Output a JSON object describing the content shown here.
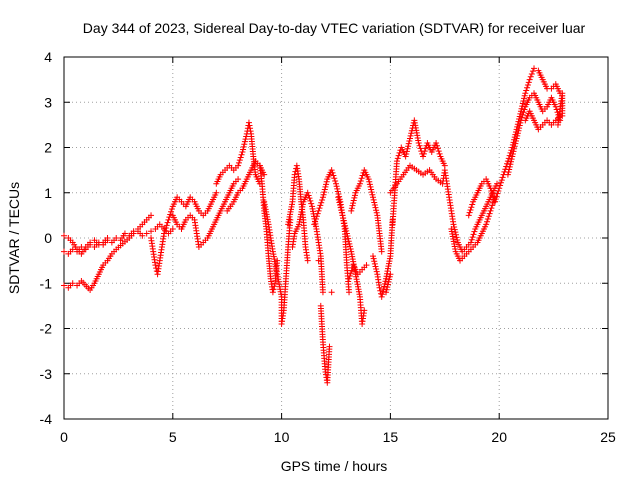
{
  "chart_data": {
    "type": "scatter",
    "title": "Day 344 of 2023, Sidereal Day-to-day VTEC variation (SDTVAR) for receiver luar",
    "xlabel": "GPS time / hours",
    "ylabel": "SDTVAR / TECUs",
    "xlim": [
      0,
      25
    ],
    "ylim": [
      -4,
      4
    ],
    "xticks": [
      0,
      5,
      10,
      15,
      20,
      25
    ],
    "yticks": [
      -4,
      -3,
      -2,
      -1,
      0,
      1,
      2,
      3,
      4
    ],
    "grid": true,
    "marker": "+",
    "series_color": "#ff0000",
    "series": [
      {
        "name": "SDTVAR",
        "points": [
          [
            0.0,
            -0.3
          ],
          [
            0.2,
            -0.35
          ],
          [
            0.4,
            -0.25
          ],
          [
            0.6,
            -0.3
          ],
          [
            0.8,
            -0.2
          ],
          [
            1.0,
            -0.25
          ],
          [
            1.2,
            -0.15
          ],
          [
            1.4,
            -0.2
          ],
          [
            1.6,
            -0.1
          ],
          [
            1.8,
            -0.15
          ],
          [
            2.0,
            -0.05
          ],
          [
            2.2,
            -0.1
          ],
          [
            2.4,
            0.0
          ],
          [
            2.6,
            -0.05
          ],
          [
            2.8,
            0.1
          ],
          [
            3.0,
            0.05
          ],
          [
            3.2,
            0.15
          ],
          [
            3.4,
            0.2
          ],
          [
            3.6,
            0.3
          ],
          [
            3.8,
            0.4
          ],
          [
            4.0,
            0.5
          ],
          [
            0.0,
            0.05
          ],
          [
            0.2,
            0.0
          ],
          [
            0.4,
            -0.1
          ],
          [
            0.6,
            -0.25
          ],
          [
            0.8,
            -0.35
          ],
          [
            1.0,
            -0.2
          ],
          [
            1.2,
            -0.1
          ],
          [
            1.4,
            -0.05
          ],
          [
            1.6,
            -0.15
          ],
          [
            1.8,
            -0.1
          ],
          [
            2.0,
            0.0
          ],
          [
            0.0,
            -1.05
          ],
          [
            0.2,
            -1.1
          ],
          [
            0.4,
            -1.0
          ],
          [
            0.6,
            -1.05
          ],
          [
            0.8,
            -0.95
          ],
          [
            1.2,
            -1.15
          ],
          [
            1.4,
            -1.0
          ],
          [
            1.6,
            -0.8
          ],
          [
            1.8,
            -0.6
          ],
          [
            2.0,
            -0.5
          ],
          [
            2.2,
            -0.35
          ],
          [
            2.4,
            -0.25
          ],
          [
            3.0,
            0.0
          ],
          [
            3.2,
            0.1
          ],
          [
            3.4,
            0.15
          ],
          [
            3.6,
            0.05
          ],
          [
            3.8,
            0.1
          ],
          [
            4.0,
            0.15
          ],
          [
            4.2,
            0.2
          ],
          [
            4.4,
            0.3
          ],
          [
            4.6,
            0.2
          ],
          [
            4.8,
            0.1
          ],
          [
            5.0,
            0.2
          ],
          [
            4.0,
            0.0
          ],
          [
            4.1,
            -0.3
          ],
          [
            4.2,
            -0.6
          ],
          [
            4.3,
            -0.8
          ],
          [
            4.4,
            -0.5
          ],
          [
            4.5,
            -0.2
          ],
          [
            4.6,
            0.1
          ],
          [
            4.6,
            0.1
          ],
          [
            4.8,
            0.4
          ],
          [
            5.0,
            0.7
          ],
          [
            5.2,
            0.9
          ],
          [
            5.4,
            0.8
          ],
          [
            5.6,
            0.7
          ],
          [
            5.8,
            0.9
          ],
          [
            6.0,
            0.8
          ],
          [
            6.2,
            0.6
          ],
          [
            6.4,
            0.5
          ],
          [
            6.6,
            0.6
          ],
          [
            6.8,
            0.8
          ],
          [
            7.0,
            1.0
          ],
          [
            5.0,
            0.5
          ],
          [
            5.2,
            0.3
          ],
          [
            5.4,
            0.2
          ],
          [
            5.6,
            0.4
          ],
          [
            5.8,
            0.5
          ],
          [
            6.0,
            0.4
          ],
          [
            6.2,
            -0.2
          ],
          [
            6.4,
            -0.1
          ],
          [
            6.6,
            0.0
          ],
          [
            6.8,
            0.2
          ],
          [
            7.0,
            0.4
          ],
          [
            7.2,
            0.6
          ],
          [
            7.4,
            0.8
          ],
          [
            7.6,
            1.0
          ],
          [
            7.8,
            1.2
          ],
          [
            8.0,
            1.3
          ],
          [
            7.0,
            1.2
          ],
          [
            7.2,
            1.4
          ],
          [
            7.4,
            1.5
          ],
          [
            7.6,
            1.6
          ],
          [
            7.8,
            1.5
          ],
          [
            8.0,
            1.6
          ],
          [
            8.2,
            1.9
          ],
          [
            8.4,
            2.3
          ],
          [
            8.5,
            2.55
          ],
          [
            8.6,
            2.3
          ],
          [
            8.7,
            1.8
          ],
          [
            8.8,
            1.4
          ],
          [
            9.0,
            1.2
          ],
          [
            7.5,
            0.6
          ],
          [
            7.8,
            0.8
          ],
          [
            8.0,
            1.0
          ],
          [
            8.2,
            1.1
          ],
          [
            8.4,
            1.3
          ],
          [
            8.6,
            1.5
          ],
          [
            8.8,
            1.7
          ],
          [
            9.0,
            1.6
          ],
          [
            9.2,
            1.4
          ],
          [
            9.0,
            1.6
          ],
          [
            9.1,
            1.2
          ],
          [
            9.2,
            0.6
          ],
          [
            9.3,
            0.2
          ],
          [
            9.4,
            -0.4
          ],
          [
            9.5,
            -0.9
          ],
          [
            9.6,
            -1.2
          ],
          [
            9.7,
            -1.0
          ],
          [
            9.8,
            -0.5
          ],
          [
            9.2,
            0.8
          ],
          [
            9.4,
            0.3
          ],
          [
            9.6,
            -0.3
          ],
          [
            9.8,
            -0.8
          ],
          [
            10.0,
            -1.3
          ],
          [
            10.0,
            -1.9
          ],
          [
            10.1,
            -1.6
          ],
          [
            10.2,
            -0.9
          ],
          [
            10.3,
            -0.2
          ],
          [
            10.4,
            0.4
          ],
          [
            10.3,
            0.3
          ],
          [
            10.5,
            0.8
          ],
          [
            10.6,
            1.4
          ],
          [
            10.7,
            1.6
          ],
          [
            10.8,
            1.3
          ],
          [
            10.9,
            0.8
          ],
          [
            11.0,
            0.4
          ],
          [
            11.1,
            -0.2
          ],
          [
            11.2,
            -0.5
          ],
          [
            10.5,
            -0.2
          ],
          [
            10.6,
            0.1
          ],
          [
            10.8,
            0.3
          ],
          [
            11.0,
            0.8
          ],
          [
            11.2,
            1.0
          ],
          [
            11.4,
            0.7
          ],
          [
            11.6,
            0.2
          ],
          [
            11.8,
            -0.4
          ],
          [
            11.9,
            -1.2
          ],
          [
            11.7,
            -0.5
          ],
          [
            11.8,
            -1.5
          ],
          [
            11.9,
            -2.3
          ],
          [
            12.0,
            -2.9
          ],
          [
            12.1,
            -3.2
          ],
          [
            12.2,
            -2.4
          ],
          [
            12.3,
            -1.2
          ],
          [
            11.5,
            0.3
          ],
          [
            11.7,
            0.6
          ],
          [
            11.9,
            0.9
          ],
          [
            12.1,
            1.3
          ],
          [
            12.3,
            1.5
          ],
          [
            12.5,
            1.2
          ],
          [
            12.7,
            0.8
          ],
          [
            12.9,
            0.2
          ],
          [
            13.0,
            -0.6
          ],
          [
            13.1,
            -1.2
          ],
          [
            12.6,
            0.9
          ],
          [
            12.8,
            0.5
          ],
          [
            13.0,
            0.1
          ],
          [
            13.2,
            -0.3
          ],
          [
            13.4,
            -0.8
          ],
          [
            13.6,
            -1.3
          ],
          [
            13.7,
            -1.9
          ],
          [
            13.8,
            -1.6
          ],
          [
            13.1,
            -0.9
          ],
          [
            13.3,
            -0.6
          ],
          [
            13.5,
            -0.8
          ],
          [
            13.7,
            -0.7
          ],
          [
            13.9,
            -0.6
          ],
          [
            13.2,
            0.6
          ],
          [
            13.4,
            1.0
          ],
          [
            13.6,
            1.2
          ],
          [
            13.8,
            1.5
          ],
          [
            14.0,
            1.3
          ],
          [
            14.2,
            0.9
          ],
          [
            14.4,
            0.5
          ],
          [
            14.6,
            -0.3
          ],
          [
            14.8,
            -1.2
          ],
          [
            15.0,
            -0.8
          ],
          [
            14.2,
            -0.4
          ],
          [
            14.4,
            -0.8
          ],
          [
            14.5,
            -1.1
          ],
          [
            14.6,
            -1.3
          ],
          [
            14.8,
            -0.9
          ],
          [
            15.0,
            -0.4
          ],
          [
            15.1,
            0.4
          ],
          [
            15.1,
            0.3
          ],
          [
            15.2,
            1.0
          ],
          [
            15.3,
            1.7
          ],
          [
            15.5,
            2.0
          ],
          [
            15.7,
            1.8
          ],
          [
            15.9,
            2.2
          ],
          [
            16.1,
            2.6
          ],
          [
            16.3,
            2.1
          ],
          [
            16.5,
            1.8
          ],
          [
            16.7,
            2.1
          ],
          [
            16.9,
            1.9
          ],
          [
            17.1,
            2.1
          ],
          [
            17.3,
            1.8
          ],
          [
            17.5,
            1.6
          ],
          [
            15.0,
            1.0
          ],
          [
            15.3,
            1.2
          ],
          [
            15.6,
            1.4
          ],
          [
            15.9,
            1.6
          ],
          [
            16.2,
            1.5
          ],
          [
            16.5,
            1.4
          ],
          [
            16.8,
            1.5
          ],
          [
            17.1,
            1.3
          ],
          [
            17.4,
            1.2
          ],
          [
            17.5,
            1.5
          ],
          [
            17.7,
            0.9
          ],
          [
            17.9,
            0.3
          ],
          [
            18.1,
            -0.1
          ],
          [
            18.3,
            -0.3
          ],
          [
            18.5,
            -0.2
          ],
          [
            18.7,
            -0.1
          ],
          [
            18.9,
            0.2
          ],
          [
            19.1,
            0.4
          ],
          [
            19.3,
            0.6
          ],
          [
            19.5,
            0.8
          ],
          [
            19.7,
            1.0
          ],
          [
            19.9,
            1.2
          ],
          [
            17.8,
            0.2
          ],
          [
            18.0,
            -0.3
          ],
          [
            18.2,
            -0.5
          ],
          [
            18.4,
            -0.4
          ],
          [
            18.6,
            -0.3
          ],
          [
            18.8,
            -0.2
          ],
          [
            19.0,
            -0.1
          ],
          [
            19.2,
            0.1
          ],
          [
            19.4,
            0.3
          ],
          [
            19.6,
            0.6
          ],
          [
            19.8,
            0.9
          ],
          [
            18.6,
            0.5
          ],
          [
            18.8,
            0.8
          ],
          [
            19.0,
            1.0
          ],
          [
            19.2,
            1.2
          ],
          [
            19.4,
            1.3
          ],
          [
            19.6,
            1.1
          ],
          [
            19.8,
            0.8
          ],
          [
            19.8,
            0.8
          ],
          [
            20.0,
            1.1
          ],
          [
            20.2,
            1.4
          ],
          [
            20.4,
            1.7
          ],
          [
            20.6,
            2.0
          ],
          [
            20.8,
            2.4
          ],
          [
            21.0,
            2.8
          ],
          [
            21.2,
            3.2
          ],
          [
            21.4,
            3.5
          ],
          [
            21.6,
            3.75
          ],
          [
            21.8,
            3.7
          ],
          [
            22.0,
            3.5
          ],
          [
            22.2,
            3.3
          ],
          [
            22.4,
            3.3
          ],
          [
            22.6,
            3.4
          ],
          [
            22.8,
            3.2
          ],
          [
            20.4,
            1.4
          ],
          [
            20.6,
            1.8
          ],
          [
            20.8,
            2.2
          ],
          [
            21.0,
            2.6
          ],
          [
            21.2,
            2.9
          ],
          [
            21.4,
            3.1
          ],
          [
            21.6,
            3.2
          ],
          [
            21.8,
            3.0
          ],
          [
            22.0,
            2.8
          ],
          [
            22.2,
            2.9
          ],
          [
            22.4,
            3.1
          ],
          [
            22.6,
            2.9
          ],
          [
            22.8,
            2.6
          ],
          [
            21.2,
            2.6
          ],
          [
            21.4,
            2.8
          ],
          [
            21.6,
            2.6
          ],
          [
            21.8,
            2.4
          ],
          [
            22.0,
            2.5
          ],
          [
            22.2,
            2.6
          ],
          [
            22.4,
            2.5
          ],
          [
            22.6,
            2.6
          ],
          [
            22.8,
            2.7
          ],
          [
            22.7,
            2.5
          ],
          [
            22.9,
            3.2
          ],
          [
            22.9,
            2.7
          ]
        ]
      }
    ]
  }
}
